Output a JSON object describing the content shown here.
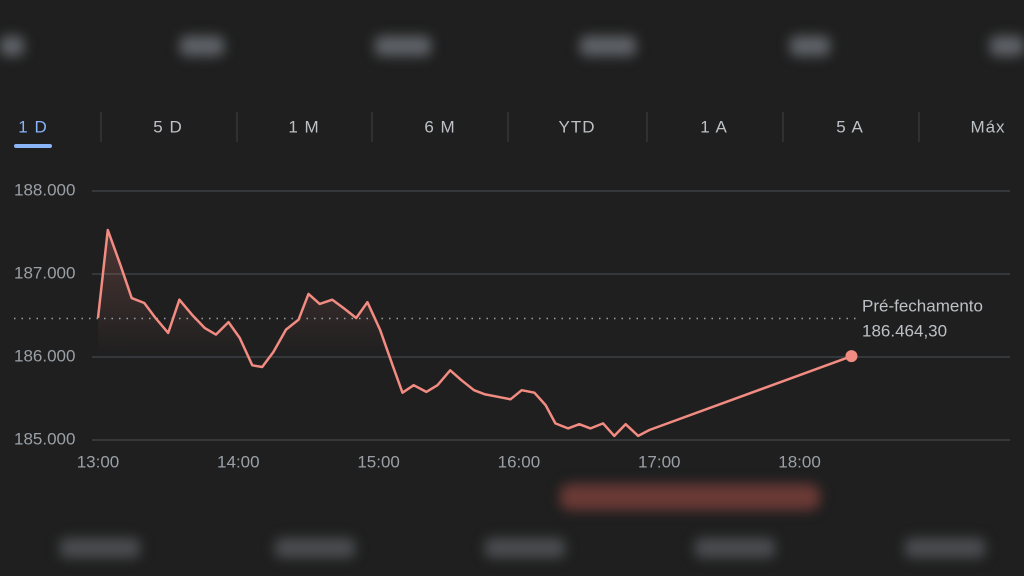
{
  "tabs": [
    "1 D",
    "5 D",
    "1 M",
    "6 M",
    "YTD",
    "1 A",
    "5 A",
    "Máx"
  ],
  "selected_tab": 0,
  "chart_data": {
    "type": "line",
    "x": [
      13.0,
      13.07,
      13.16,
      13.24,
      13.33,
      13.41,
      13.5,
      13.58,
      13.67,
      13.76,
      13.84,
      13.93,
      14.01,
      14.1,
      14.17,
      14.25,
      14.34,
      14.43,
      14.5,
      14.58,
      14.67,
      14.75,
      14.84,
      14.92,
      15.01,
      15.1,
      15.17,
      15.25,
      15.34,
      15.42,
      15.51,
      15.59,
      15.68,
      15.76,
      15.85,
      15.94,
      16.02,
      16.11,
      16.19,
      16.26,
      16.35,
      16.43,
      16.51,
      16.6,
      16.68,
      16.76,
      16.85,
      16.93,
      18.37
    ],
    "series": [
      {
        "color": "#f28b82",
        "values": [
          186470,
          187530,
          187110,
          186710,
          186650,
          186470,
          186290,
          186690,
          186510,
          186350,
          186270,
          186420,
          186230,
          185900,
          185880,
          186060,
          186330,
          186450,
          186760,
          186640,
          186690,
          186590,
          186470,
          186660,
          186330,
          185900,
          185570,
          185660,
          185580,
          185660,
          185840,
          185720,
          185600,
          185550,
          185520,
          185490,
          185600,
          185570,
          185420,
          185200,
          185140,
          185190,
          185140,
          185200,
          185050,
          185190,
          185050,
          185120,
          186010
        ]
      }
    ],
    "xlim": [
      13,
      19.5
    ],
    "xticks": [
      {
        "value": 13,
        "label": "13:00"
      },
      {
        "value": 14,
        "label": "14:00"
      },
      {
        "value": 15,
        "label": "15:00"
      },
      {
        "value": 16,
        "label": "16:00"
      },
      {
        "value": 17,
        "label": "17:00"
      },
      {
        "value": 18,
        "label": "18:00"
      }
    ],
    "ylim": [
      185000,
      188000
    ],
    "yticks": [
      {
        "value": 185000,
        "label": "185.000"
      },
      {
        "value": 186000,
        "label": "186.000"
      },
      {
        "value": 187000,
        "label": "187.000"
      },
      {
        "value": 188000,
        "label": "188.000"
      }
    ],
    "grid": true,
    "reference_line": {
      "label": "Pré-fechamento",
      "value": 186464.3,
      "value_label": "186.464,30"
    }
  }
}
